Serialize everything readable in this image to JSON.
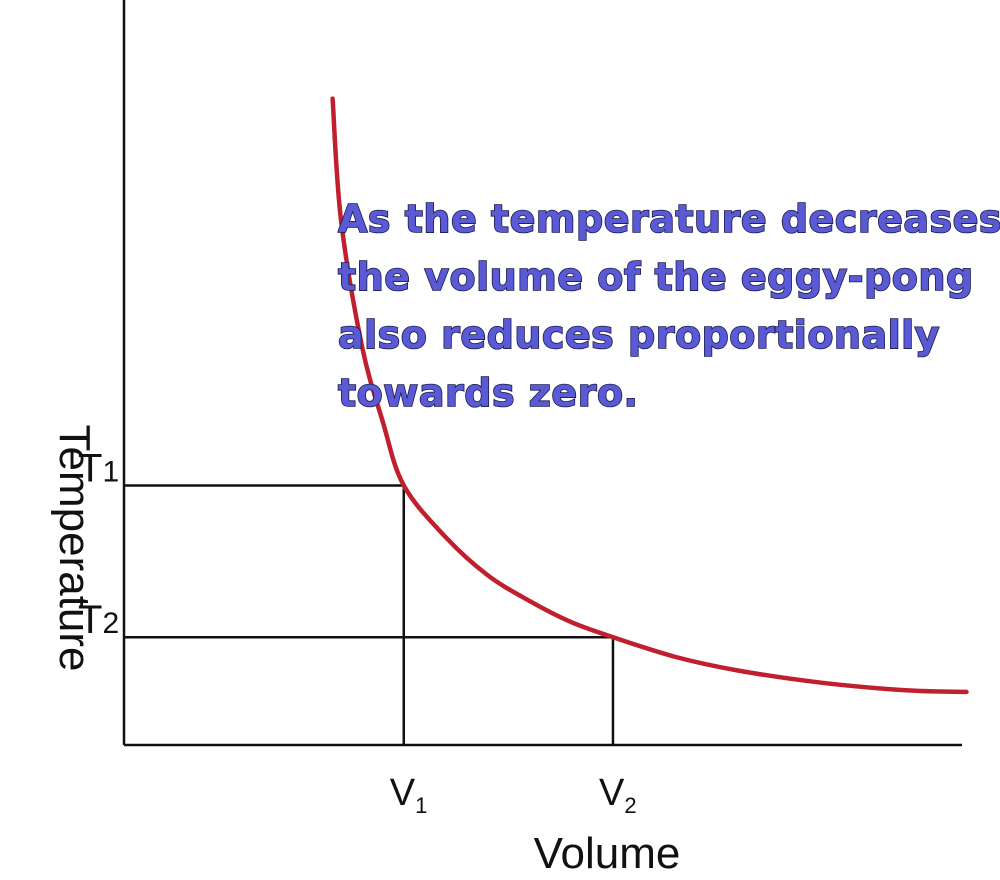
{
  "chart_data": {
    "type": "line",
    "title": "",
    "xlabel": "Volume",
    "ylabel": "Temperature",
    "x_ticks": [
      {
        "main": "V",
        "sub": "1",
        "x": 1.0
      },
      {
        "main": "V",
        "sub": "2",
        "x": 2.0
      }
    ],
    "y_ticks": [
      {
        "main": "T",
        "sub": "1",
        "y": 2.0
      },
      {
        "main": "T",
        "sub": "2",
        "y": 1.0
      }
    ],
    "guides": [
      {
        "x": 1.0,
        "y": 2.0
      },
      {
        "x": 2.0,
        "y": 1.0
      }
    ],
    "series": [
      {
        "color": "#c0202e",
        "x": [
          0.66,
          0.7,
          0.8,
          0.9,
          1.0,
          1.2,
          1.4,
          1.6,
          1.8,
          2.0,
          2.3,
          2.6,
          3.0,
          3.4,
          3.69
        ],
        "y": [
          4.55,
          3.75,
          2.92,
          2.42,
          2.0,
          1.66,
          1.41,
          1.24,
          1.1,
          1.0,
          0.87,
          0.78,
          0.7,
          0.65,
          0.64
        ]
      }
    ],
    "xlim": [
      -0.93,
      3.85
    ],
    "ylim": [
      -0.6,
      5.2
    ],
    "annotation": {
      "lines": [
        "As the temperature decreases s",
        "the volume of the eggy-pong",
        "also reduces proportionally",
        "towards zero."
      ]
    }
  }
}
